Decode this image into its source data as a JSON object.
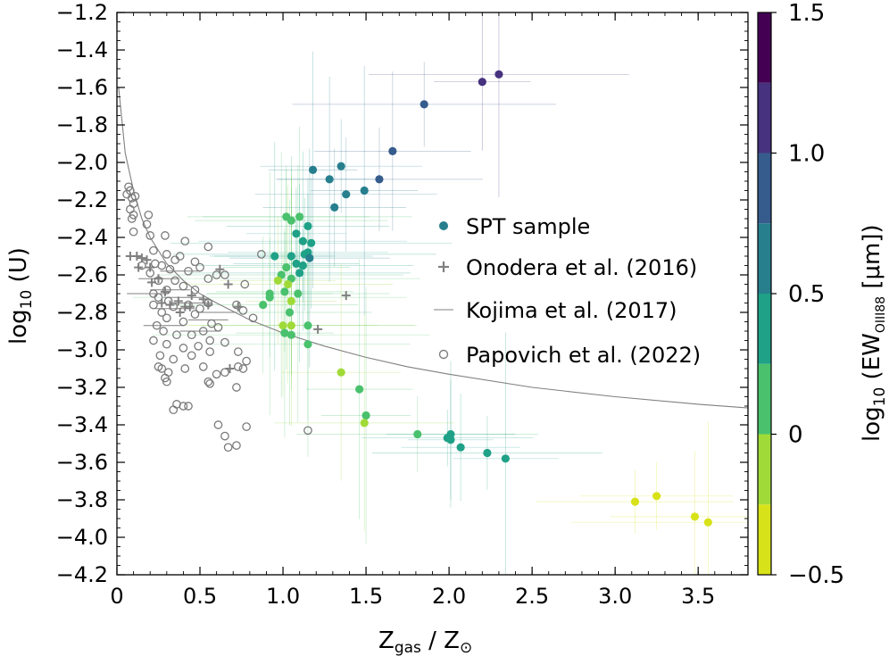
{
  "chart_data": {
    "type": "scatter",
    "xlabel_main": "Z",
    "xlabel_sub": "gas",
    "xlabel_mid": " / Z",
    "xlabel_sym": "⊙",
    "ylabel_main": "log",
    "ylabel_sub": "10",
    "ylabel_end": " (U)",
    "xlim": [
      0,
      3.8
    ],
    "ylim": [
      -4.2,
      -1.2
    ],
    "xticks": [
      {
        "v": 0,
        "label": "0"
      },
      {
        "v": 0.5,
        "label": "0.5"
      },
      {
        "v": 1.0,
        "label": "1.0"
      },
      {
        "v": 1.5,
        "label": "1.5"
      },
      {
        "v": 2.0,
        "label": "2.0"
      },
      {
        "v": 2.5,
        "label": "2.5"
      },
      {
        "v": 3.0,
        "label": "3.0"
      },
      {
        "v": 3.5,
        "label": "3.5"
      }
    ],
    "yticks": [
      {
        "v": -1.2,
        "label": "−1.2"
      },
      {
        "v": -1.4,
        "label": "−1.4"
      },
      {
        "v": -1.6,
        "label": "−1.6"
      },
      {
        "v": -1.8,
        "label": "−1.8"
      },
      {
        "v": -2.0,
        "label": "−2.0"
      },
      {
        "v": -2.2,
        "label": "−2.2"
      },
      {
        "v": -2.4,
        "label": "−2.4"
      },
      {
        "v": -2.6,
        "label": "−2.6"
      },
      {
        "v": -2.8,
        "label": "−2.8"
      },
      {
        "v": -3.0,
        "label": "−3.0"
      },
      {
        "v": -3.2,
        "label": "−3.2"
      },
      {
        "v": -3.4,
        "label": "−3.4"
      },
      {
        "v": -3.6,
        "label": "−3.6"
      },
      {
        "v": -3.8,
        "label": "−3.8"
      },
      {
        "v": -4.0,
        "label": "−4.0"
      },
      {
        "v": -4.2,
        "label": "−4.2"
      }
    ],
    "colorbar": {
      "label_main": "log",
      "label_sub": "10",
      "label_mid": " (EW",
      "label_sub2": "OIII88",
      "label_end": " [μm])",
      "range": [
        -0.5,
        1.5
      ],
      "bins": [
        {
          "lo": -0.5,
          "hi": -0.25,
          "color": "#d8e219"
        },
        {
          "lo": -0.25,
          "hi": 0.0,
          "color": "#a0da39"
        },
        {
          "lo": 0.0,
          "hi": 0.25,
          "color": "#4ac16d"
        },
        {
          "lo": 0.25,
          "hi": 0.5,
          "color": "#1fa187"
        },
        {
          "lo": 0.5,
          "hi": 0.75,
          "color": "#277f8e"
        },
        {
          "lo": 0.75,
          "hi": 1.0,
          "color": "#365c8d"
        },
        {
          "lo": 1.0,
          "hi": 1.25,
          "color": "#46327e"
        },
        {
          "lo": 1.25,
          "hi": 1.5,
          "color": "#440154"
        }
      ],
      "ticks": [
        {
          "v": 1.5,
          "label": "1.5"
        },
        {
          "v": 1.0,
          "label": "1.0"
        },
        {
          "v": 0.5,
          "label": "0.5"
        },
        {
          "v": 0.0,
          "label": "0"
        },
        {
          "v": -0.5,
          "label": "−0.5"
        }
      ]
    },
    "legend": {
      "position": "center-right",
      "entries": [
        {
          "label": "SPT sample",
          "marker": "filled-circle"
        },
        {
          "label": "Onodera et al. (2016)",
          "marker": "plus"
        },
        {
          "label": "Kojima et al. (2017)",
          "marker": "line"
        },
        {
          "label": "Papovich et al. (2022)",
          "marker": "open-circle"
        }
      ]
    },
    "curve": [
      [
        0.01,
        -1.6
      ],
      [
        0.05,
        -1.95
      ],
      [
        0.1,
        -2.15
      ],
      [
        0.15,
        -2.3
      ],
      [
        0.2,
        -2.4
      ],
      [
        0.3,
        -2.54
      ],
      [
        0.4,
        -2.63
      ],
      [
        0.5,
        -2.7
      ],
      [
        0.6,
        -2.75
      ],
      [
        0.8,
        -2.84
      ],
      [
        1.0,
        -2.91
      ],
      [
        1.25,
        -2.98
      ],
      [
        1.5,
        -3.04
      ],
      [
        1.75,
        -3.09
      ],
      [
        2.0,
        -3.13
      ],
      [
        2.5,
        -3.2
      ],
      [
        3.0,
        -3.25
      ],
      [
        3.5,
        -3.29
      ],
      [
        3.8,
        -3.31
      ]
    ],
    "spt_sample": [
      [
        2.3,
        -1.53,
        1.2
      ],
      [
        2.2,
        -1.57,
        1.15
      ],
      [
        1.85,
        -1.69,
        0.95
      ],
      [
        1.66,
        -1.94,
        0.85
      ],
      [
        1.58,
        -2.09,
        0.8
      ],
      [
        1.49,
        -2.15,
        0.68
      ],
      [
        1.35,
        -2.02,
        0.65
      ],
      [
        1.38,
        -2.17,
        0.6
      ],
      [
        1.28,
        -2.09,
        0.62
      ],
      [
        1.31,
        -2.24,
        0.58
      ],
      [
        1.18,
        -2.04,
        0.6
      ],
      [
        0.95,
        -2.5,
        0.4
      ],
      [
        1.02,
        -2.29,
        0.2
      ],
      [
        1.05,
        -2.31,
        0.18
      ],
      [
        1.1,
        -2.29,
        0.22
      ],
      [
        1.08,
        -2.38,
        0.3
      ],
      [
        1.15,
        -2.34,
        0.32
      ],
      [
        1.17,
        -2.43,
        0.35
      ],
      [
        1.12,
        -2.42,
        0.3
      ],
      [
        1.13,
        -2.49,
        0.4
      ],
      [
        1.15,
        -2.48,
        0.45
      ],
      [
        1.16,
        -2.51,
        0.5
      ],
      [
        1.05,
        -2.5,
        0.3
      ],
      [
        1.08,
        -2.54,
        0.25
      ],
      [
        1.12,
        -2.55,
        0.3
      ],
      [
        1.02,
        -2.56,
        0.2
      ],
      [
        0.99,
        -2.6,
        0.15
      ],
      [
        1.05,
        -2.62,
        0.22
      ],
      [
        1.1,
        -2.59,
        0.25
      ],
      [
        1.09,
        -2.7,
        0.18
      ],
      [
        1.01,
        -2.69,
        0.2
      ],
      [
        0.97,
        -2.63,
        -0.05
      ],
      [
        1.03,
        -2.65,
        -0.1
      ],
      [
        0.92,
        -2.7,
        0.1
      ],
      [
        0.92,
        -2.72,
        0.15
      ],
      [
        0.88,
        -2.76,
        0.12
      ],
      [
        1.05,
        -2.74,
        -0.05
      ],
      [
        1.04,
        -2.8,
        0.1
      ],
      [
        1.0,
        -2.87,
        -0.05
      ],
      [
        1.01,
        -2.91,
        0.05
      ],
      [
        1.05,
        -2.87,
        -0.05
      ],
      [
        1.05,
        -2.92,
        0.0
      ],
      [
        1.15,
        -2.87,
        0.0
      ],
      [
        1.15,
        -2.97,
        0.1
      ],
      [
        1.35,
        -3.12,
        -0.05
      ],
      [
        1.46,
        -3.21,
        0.2
      ],
      [
        1.5,
        -3.35,
        0.05
      ],
      [
        1.49,
        -3.39,
        -0.05
      ],
      [
        1.81,
        -3.45,
        0.1
      ],
      [
        1.99,
        -3.47,
        0.28
      ],
      [
        2.01,
        -3.45,
        0.25
      ],
      [
        2.01,
        -3.48,
        0.3
      ],
      [
        2.07,
        -3.52,
        0.25
      ],
      [
        2.23,
        -3.55,
        0.25
      ],
      [
        2.34,
        -3.58,
        0.3
      ],
      [
        3.12,
        -3.81,
        -0.4
      ],
      [
        3.25,
        -3.78,
        -0.35
      ],
      [
        3.48,
        -3.89,
        -0.4
      ],
      [
        3.56,
        -3.92,
        -0.4
      ]
    ],
    "onodera_2016": [
      [
        0.08,
        -2.5
      ],
      [
        0.12,
        -2.5
      ],
      [
        0.15,
        -2.51
      ],
      [
        0.18,
        -2.52
      ],
      [
        0.13,
        -2.56
      ],
      [
        0.2,
        -2.56
      ],
      [
        0.21,
        -2.64
      ],
      [
        0.25,
        -2.62
      ],
      [
        0.29,
        -2.69
      ],
      [
        0.27,
        -2.75
      ],
      [
        0.32,
        -2.76
      ],
      [
        0.37,
        -2.74
      ],
      [
        0.41,
        -2.77
      ],
      [
        0.44,
        -2.77
      ],
      [
        0.38,
        -2.8
      ],
      [
        0.45,
        -2.71
      ],
      [
        0.55,
        -2.76
      ],
      [
        0.62,
        -2.57
      ],
      [
        0.67,
        -2.65
      ],
      [
        0.73,
        -2.77
      ],
      [
        0.68,
        -3.1
      ],
      [
        0.52,
        -2.73
      ],
      [
        1.38,
        -2.71
      ],
      [
        1.21,
        -2.89
      ]
    ],
    "papovich_2022": [
      [
        0.07,
        -2.13
      ],
      [
        0.08,
        -2.15
      ],
      [
        0.09,
        -2.19
      ],
      [
        0.06,
        -2.17
      ],
      [
        0.11,
        -2.18
      ],
      [
        0.1,
        -2.22
      ],
      [
        0.08,
        -2.25
      ],
      [
        0.1,
        -2.28
      ],
      [
        0.09,
        -2.3
      ],
      [
        0.1,
        -2.37
      ],
      [
        0.19,
        -2.28
      ],
      [
        0.18,
        -2.33
      ],
      [
        0.2,
        -2.39
      ],
      [
        0.29,
        -2.39
      ],
      [
        0.41,
        -2.42
      ],
      [
        0.55,
        -2.45
      ],
      [
        0.22,
        -2.47
      ],
      [
        0.3,
        -2.49
      ],
      [
        0.38,
        -2.5
      ],
      [
        0.35,
        -2.52
      ],
      [
        0.47,
        -2.53
      ],
      [
        0.23,
        -2.54
      ],
      [
        0.27,
        -2.55
      ],
      [
        0.32,
        -2.57
      ],
      [
        0.43,
        -2.58
      ],
      [
        0.5,
        -2.56
      ],
      [
        0.55,
        -2.62
      ],
      [
        0.65,
        -2.6
      ],
      [
        0.6,
        -2.6
      ],
      [
        0.2,
        -2.59
      ],
      [
        0.25,
        -2.63
      ],
      [
        0.35,
        -2.63
      ],
      [
        0.4,
        -2.66
      ],
      [
        0.47,
        -2.68
      ],
      [
        0.3,
        -2.68
      ],
      [
        0.22,
        -2.7
      ],
      [
        0.25,
        -2.72
      ],
      [
        0.31,
        -2.74
      ],
      [
        0.34,
        -2.77
      ],
      [
        0.43,
        -2.76
      ],
      [
        0.5,
        -2.78
      ],
      [
        0.55,
        -2.75
      ],
      [
        0.22,
        -2.76
      ],
      [
        0.27,
        -2.8
      ],
      [
        0.3,
        -2.83
      ],
      [
        0.4,
        -2.85
      ],
      [
        0.47,
        -2.81
      ],
      [
        0.57,
        -2.86
      ],
      [
        0.61,
        -2.88
      ],
      [
        0.24,
        -2.87
      ],
      [
        0.28,
        -2.9
      ],
      [
        0.36,
        -2.92
      ],
      [
        0.45,
        -2.92
      ],
      [
        0.52,
        -2.9
      ],
      [
        0.22,
        -2.95
      ],
      [
        0.3,
        -2.97
      ],
      [
        0.4,
        -2.99
      ],
      [
        0.49,
        -2.98
      ],
      [
        0.56,
        -2.95
      ],
      [
        0.65,
        -2.96
      ],
      [
        0.26,
        -3.03
      ],
      [
        0.34,
        -3.05
      ],
      [
        0.45,
        -3.03
      ],
      [
        0.56,
        -3.01
      ],
      [
        0.73,
        -3.01
      ],
      [
        0.25,
        -3.09
      ],
      [
        0.27,
        -3.1
      ],
      [
        0.31,
        -3.12
      ],
      [
        0.41,
        -3.1
      ],
      [
        0.52,
        -3.09
      ],
      [
        0.6,
        -3.13
      ],
      [
        0.73,
        -3.09
      ],
      [
        0.29,
        -3.15
      ],
      [
        0.3,
        -3.17
      ],
      [
        0.55,
        -3.17
      ],
      [
        0.56,
        -3.18
      ],
      [
        0.65,
        -3.12
      ],
      [
        0.78,
        -3.06
      ],
      [
        0.76,
        -3.1
      ],
      [
        0.72,
        -3.2
      ],
      [
        0.36,
        -3.29
      ],
      [
        0.34,
        -3.32
      ],
      [
        0.4,
        -3.3
      ],
      [
        0.43,
        -3.3
      ],
      [
        0.61,
        -3.4
      ],
      [
        0.65,
        -3.46
      ],
      [
        0.67,
        -3.52
      ],
      [
        0.72,
        -3.51
      ],
      [
        0.78,
        -3.41
      ],
      [
        0.72,
        -2.76
      ],
      [
        0.76,
        -2.79
      ],
      [
        0.82,
        -2.83
      ],
      [
        0.87,
        -2.49
      ],
      [
        0.77,
        -2.65
      ],
      [
        1.15,
        -3.43
      ],
      [
        0.15,
        -2.55
      ]
    ],
    "kojima_2017": [
      [
        0.25,
        -2.62
      ],
      [
        0.32,
        -2.68
      ],
      [
        0.4,
        -2.72
      ],
      [
        0.18,
        -2.7
      ],
      [
        0.45,
        -2.75
      ],
      [
        0.55,
        -2.84
      ],
      [
        0.6,
        -2.8
      ],
      [
        0.35,
        -2.78
      ],
      [
        0.28,
        -2.87
      ],
      [
        0.5,
        -2.9
      ],
      [
        0.38,
        -2.58
      ]
    ]
  }
}
